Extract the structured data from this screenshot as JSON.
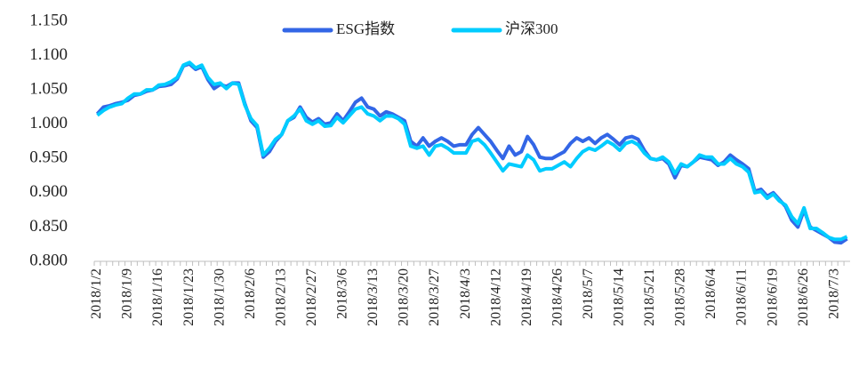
{
  "chart_data": {
    "type": "line",
    "categories": [
      "2018/1/2",
      null,
      null,
      null,
      null,
      "2018/1/9",
      null,
      null,
      null,
      null,
      "2018/1/16",
      null,
      null,
      null,
      null,
      "2018/1/23",
      null,
      null,
      null,
      null,
      "2018/1/30",
      null,
      null,
      null,
      null,
      "2018/2/6",
      null,
      null,
      null,
      null,
      "2018/2/13",
      null,
      null,
      null,
      null,
      "2018/2/27",
      null,
      null,
      null,
      null,
      "2018/3/6",
      null,
      null,
      null,
      null,
      "2018/3/13",
      null,
      null,
      null,
      null,
      "2018/3/20",
      null,
      null,
      null,
      null,
      "2018/3/27",
      null,
      null,
      null,
      null,
      "2018/4/3",
      null,
      null,
      null,
      null,
      "2018/4/12",
      null,
      null,
      null,
      null,
      "2018/4/19",
      null,
      null,
      null,
      null,
      "2018/4/26",
      null,
      null,
      null,
      null,
      "2018/5/7",
      null,
      null,
      null,
      null,
      "2018/5/14",
      null,
      null,
      null,
      null,
      "2018/5/21",
      null,
      null,
      null,
      null,
      "2018/5/28",
      null,
      null,
      null,
      null,
      "2018/6/4",
      null,
      null,
      null,
      null,
      "2018/6/11",
      null,
      null,
      null,
      null,
      "2018/6/19",
      null,
      null,
      null,
      null,
      "2018/6/26",
      null,
      null,
      null,
      null,
      "2018/7/3",
      null,
      null
    ],
    "series": [
      {
        "name": "ESG指数",
        "color": "#3366e6",
        "values": [
          1.015,
          1.025,
          1.027,
          1.03,
          1.032,
          1.035,
          1.042,
          1.044,
          1.048,
          1.05,
          1.055,
          1.056,
          1.058,
          1.066,
          1.085,
          1.088,
          1.08,
          1.084,
          1.065,
          1.052,
          1.058,
          1.055,
          1.06,
          1.06,
          1.03,
          1.005,
          0.995,
          0.952,
          0.96,
          0.975,
          0.985,
          1.005,
          1.01,
          1.025,
          1.01,
          1.003,
          1.008,
          1.0,
          1.002,
          1.015,
          1.005,
          1.018,
          1.032,
          1.038,
          1.025,
          1.022,
          1.012,
          1.018,
          1.015,
          1.01,
          1.005,
          0.975,
          0.968,
          0.98,
          0.968,
          0.975,
          0.98,
          0.975,
          0.968,
          0.97,
          0.97,
          0.985,
          0.995,
          0.985,
          0.975,
          0.962,
          0.95,
          0.968,
          0.955,
          0.96,
          0.982,
          0.97,
          0.952,
          0.95,
          0.95,
          0.955,
          0.96,
          0.972,
          0.98,
          0.975,
          0.98,
          0.972,
          0.98,
          0.985,
          0.978,
          0.97,
          0.98,
          0.982,
          0.978,
          0.962,
          0.95,
          0.948,
          0.95,
          0.942,
          0.922,
          0.94,
          0.938,
          0.945,
          0.952,
          0.95,
          0.948,
          0.94,
          0.945,
          0.955,
          0.948,
          0.942,
          0.935,
          0.902,
          0.905,
          0.895,
          0.9,
          0.89,
          0.88,
          0.86,
          0.85,
          0.875,
          0.85,
          0.845,
          0.84,
          0.835,
          0.828,
          0.827,
          0.833
        ]
      },
      {
        "name": "沪深300",
        "color": "#00ccff",
        "values": [
          1.013,
          1.02,
          1.025,
          1.028,
          1.03,
          1.038,
          1.044,
          1.044,
          1.05,
          1.05,
          1.057,
          1.058,
          1.062,
          1.068,
          1.086,
          1.09,
          1.082,
          1.086,
          1.068,
          1.058,
          1.06,
          1.052,
          1.06,
          1.058,
          1.028,
          1.008,
          0.998,
          0.955,
          0.965,
          0.978,
          0.985,
          1.005,
          1.012,
          1.022,
          1.005,
          1.0,
          1.005,
          0.997,
          0.998,
          1.01,
          1.002,
          1.012,
          1.022,
          1.025,
          1.015,
          1.012,
          1.005,
          1.012,
          1.012,
          1.008,
          1.0,
          0.968,
          0.965,
          0.968,
          0.955,
          0.968,
          0.97,
          0.965,
          0.958,
          0.958,
          0.958,
          0.975,
          0.978,
          0.97,
          0.958,
          0.945,
          0.932,
          0.942,
          0.94,
          0.938,
          0.955,
          0.948,
          0.932,
          0.935,
          0.935,
          0.94,
          0.945,
          0.938,
          0.95,
          0.96,
          0.965,
          0.962,
          0.968,
          0.975,
          0.97,
          0.962,
          0.972,
          0.975,
          0.97,
          0.958,
          0.95,
          0.948,
          0.952,
          0.945,
          0.928,
          0.942,
          0.938,
          0.945,
          0.955,
          0.952,
          0.952,
          0.942,
          0.942,
          0.95,
          0.942,
          0.938,
          0.93,
          0.9,
          0.902,
          0.892,
          0.898,
          0.888,
          0.882,
          0.865,
          0.855,
          0.878,
          0.848,
          0.848,
          0.842,
          0.835,
          0.832,
          0.832,
          0.836
        ]
      }
    ],
    "ylim": [
      0.8,
      1.15
    ],
    "yticks": [
      {
        "value": 0.8,
        "label": "0.800"
      },
      {
        "value": 0.85,
        "label": "0.850"
      },
      {
        "value": 0.9,
        "label": "0.900"
      },
      {
        "value": 0.95,
        "label": "0.950"
      },
      {
        "value": 1.0,
        "label": "1.000"
      },
      {
        "value": 1.05,
        "label": "1.050"
      },
      {
        "value": 1.1,
        "label": "1.100"
      },
      {
        "value": 1.15,
        "label": "1.150"
      }
    ],
    "grid": false,
    "legend": "top"
  }
}
